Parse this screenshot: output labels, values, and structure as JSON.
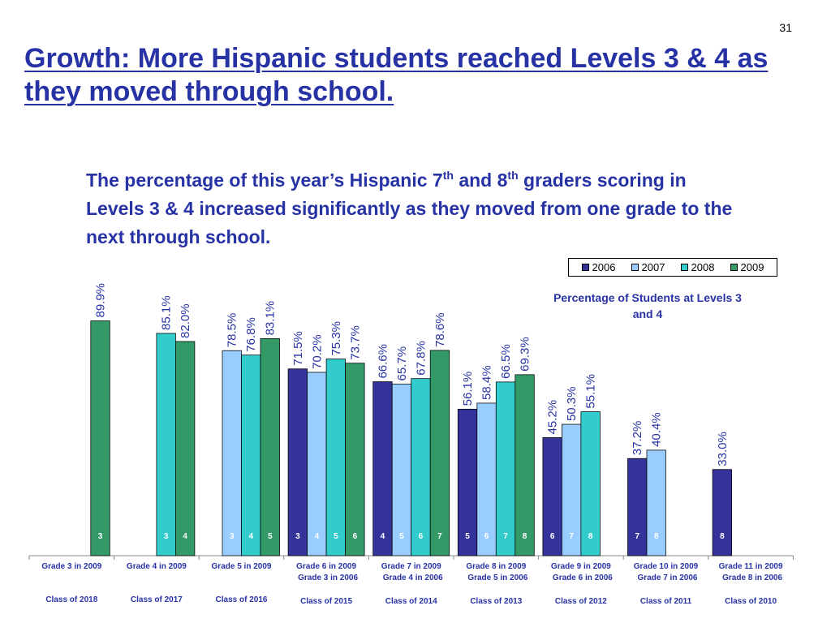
{
  "page_number": "31",
  "title": "Growth: More Hispanic students reached Levels 3 & 4 as they moved through school.",
  "subtitle": {
    "part1": "The percentage of this year’s Hispanic 7",
    "sup1": "th",
    "part2": " and 8",
    "sup2": "th",
    "part3": " graders scoring in Levels 3 & 4 increased significantly as they moved from one grade to the next through school."
  },
  "chart_note": "Percentage of Students at Levels 3 and 4",
  "colors": {
    "2006": "#333399",
    "2007": "#99ccff",
    "2008": "#33cccc",
    "2009": "#339966",
    "text": "#2733a5"
  },
  "chart_data": {
    "type": "bar",
    "ylim": [
      0,
      100
    ],
    "legend": [
      "2006",
      "2007",
      "2008",
      "2009"
    ],
    "legend_position": "top-right",
    "grid": false,
    "groups": [
      {
        "label1": "Grade 3 in 2009",
        "label2": "",
        "class": "Class of 2018",
        "bars": [
          {
            "year": "2009",
            "value": 89.9,
            "label": "89.9%",
            "grade": "3"
          }
        ]
      },
      {
        "label1": "Grade 4 in 2009",
        "label2": "",
        "class": "Class of 2017",
        "bars": [
          {
            "year": "2008",
            "value": 85.1,
            "label": "85.1%",
            "grade": "3"
          },
          {
            "year": "2009",
            "value": 82.0,
            "label": "82.0%",
            "grade": "4"
          }
        ]
      },
      {
        "label1": "Grade 5 in 2009",
        "label2": "",
        "class": "Class of 2016",
        "bars": [
          {
            "year": "2007",
            "value": 78.5,
            "label": "78.5%",
            "grade": "3"
          },
          {
            "year": "2008",
            "value": 76.8,
            "label": "76.8%",
            "grade": "4"
          },
          {
            "year": "2009",
            "value": 83.1,
            "label": "83.1%",
            "grade": "5"
          }
        ]
      },
      {
        "label1": "Grade 6 in 2009",
        "label2": "Grade 3 in 2006",
        "class": "Class of 2015",
        "bars": [
          {
            "year": "2006",
            "value": 71.5,
            "label": "71.5%",
            "grade": "3"
          },
          {
            "year": "2007",
            "value": 70.2,
            "label": "70.2%",
            "grade": "4"
          },
          {
            "year": "2008",
            "value": 75.3,
            "label": "75.3%",
            "grade": "5"
          },
          {
            "year": "2009",
            "value": 73.7,
            "label": "73.7%",
            "grade": "6"
          }
        ]
      },
      {
        "label1": "Grade 7 in 2009",
        "label2": "Grade 4 in 2006",
        "class": "Class of 2014",
        "bars": [
          {
            "year": "2006",
            "value": 66.6,
            "label": "66.6%",
            "grade": "4"
          },
          {
            "year": "2007",
            "value": 65.7,
            "label": "65.7%",
            "grade": "5"
          },
          {
            "year": "2008",
            "value": 67.8,
            "label": "67.8%",
            "grade": "6"
          },
          {
            "year": "2009",
            "value": 78.6,
            "label": "78.6%",
            "grade": "7"
          }
        ]
      },
      {
        "label1": "Grade 8 in 2009",
        "label2": "Grade 5 in 2006",
        "class": "Class of 2013",
        "bars": [
          {
            "year": "2006",
            "value": 56.1,
            "label": "56.1%",
            "grade": "5"
          },
          {
            "year": "2007",
            "value": 58.4,
            "label": "58.4%",
            "grade": "6"
          },
          {
            "year": "2008",
            "value": 66.5,
            "label": "66.5%",
            "grade": "7"
          },
          {
            "year": "2009",
            "value": 69.3,
            "label": "69.3%",
            "grade": "8"
          }
        ]
      },
      {
        "label1": "Grade 9 in 2009",
        "label2": "Grade 6 in 2006",
        "class": "Class of 2012",
        "bars": [
          {
            "year": "2006",
            "value": 45.2,
            "label": "45.2%",
            "grade": "6"
          },
          {
            "year": "2007",
            "value": 50.3,
            "label": "50.3%",
            "grade": "7"
          },
          {
            "year": "2008",
            "value": 55.1,
            "label": "55.1%",
            "grade": "8"
          }
        ]
      },
      {
        "label1": "Grade 10 in 2009",
        "label2": "Grade 7 in 2006",
        "class": "Class of 2011",
        "bars": [
          {
            "year": "2006",
            "value": 37.2,
            "label": "37.2%",
            "grade": "7"
          },
          {
            "year": "2007",
            "value": 40.4,
            "label": "40.4%",
            "grade": "8"
          }
        ]
      },
      {
        "label1": "Grade 11 in 2009",
        "label2": "Grade 8 in 2006",
        "class": "Class of 2010",
        "bars": [
          {
            "year": "2006",
            "value": 33.0,
            "label": "33.0%",
            "grade": "8"
          }
        ]
      }
    ]
  }
}
